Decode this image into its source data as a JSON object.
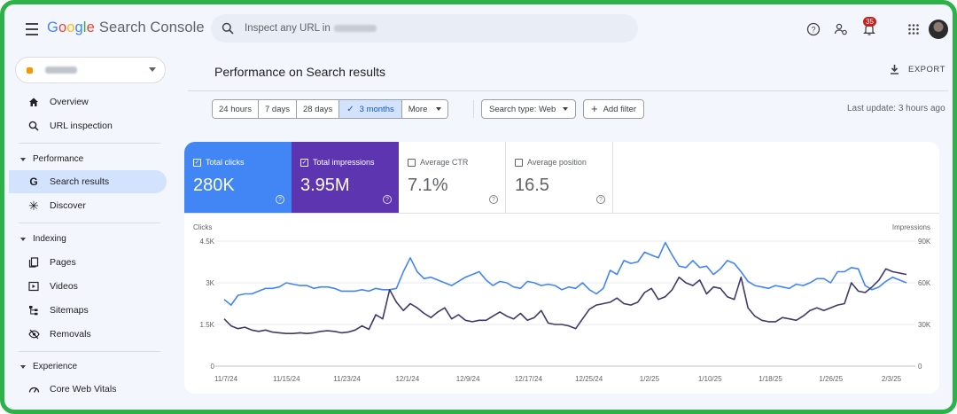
{
  "header": {
    "logo": {
      "g1": "G",
      "g2": "o",
      "g3": "o",
      "g4": "g",
      "g5": "l",
      "g6": "e",
      "product": "Search Console"
    },
    "search_placeholder": "Inspect any URL in",
    "notification_count": "35",
    "icons": [
      "menu-icon",
      "search-icon",
      "help-icon",
      "manage-users-icon",
      "bell-icon",
      "apps-icon"
    ]
  },
  "sidebar": {
    "items": [
      {
        "label": "Overview",
        "icon": "home-icon"
      },
      {
        "label": "URL inspection",
        "icon": "search-icon"
      },
      {
        "label": "Search results",
        "icon": "google-g-icon"
      },
      {
        "label": "Discover",
        "icon": "asterisk-icon"
      },
      {
        "label": "Pages",
        "icon": "pages-icon"
      },
      {
        "label": "Videos",
        "icon": "video-icon"
      },
      {
        "label": "Sitemaps",
        "icon": "sitemap-icon"
      },
      {
        "label": "Removals",
        "icon": "eye-off-icon"
      },
      {
        "label": "Core Web Vitals",
        "icon": "gauge-icon"
      }
    ],
    "sections": [
      "Performance",
      "Indexing",
      "Experience"
    ]
  },
  "main": {
    "title": "Performance on Search results",
    "export_label": "EXPORT",
    "date_ranges": [
      "24 hours",
      "7 days",
      "28 days",
      "3 months",
      "More"
    ],
    "selected_range": "3 months",
    "search_type": "Search type: Web",
    "add_filter": "Add filter",
    "last_update": "Last update: 3 hours ago"
  },
  "metrics": [
    {
      "label": "Total clicks",
      "value": "280K",
      "checked": true,
      "color": "#4285f4"
    },
    {
      "label": "Total impressions",
      "value": "3.95M",
      "checked": true,
      "color": "#5e35b1"
    },
    {
      "label": "Average CTR",
      "value": "7.1%",
      "checked": false
    },
    {
      "label": "Average position",
      "value": "16.5",
      "checked": false
    }
  ],
  "chart_data": {
    "type": "line",
    "left_axis": {
      "label": "Clicks",
      "ticks": [
        "4.5K",
        "3K",
        "1.5K",
        "0"
      ],
      "range": [
        0,
        4500
      ]
    },
    "right_axis": {
      "label": "Impressions",
      "ticks": [
        "90K",
        "60K",
        "30K",
        "0"
      ],
      "range": [
        0,
        90000
      ]
    },
    "x_ticks": [
      "11/7/24",
      "11/15/24",
      "11/23/24",
      "12/1/24",
      "12/9/24",
      "12/17/24",
      "12/25/24",
      "1/2/25",
      "1/10/25",
      "1/18/25",
      "1/26/25",
      "2/3/25"
    ],
    "series": [
      {
        "axis": "left",
        "color": "#4285f4",
        "values": [
          2400,
          2200,
          2550,
          2600,
          2600,
          2700,
          2800,
          2800,
          2850,
          3000,
          2950,
          2900,
          2900,
          2800,
          2850,
          2850,
          2800,
          2700,
          2700,
          2700,
          2750,
          2700,
          2800,
          2750,
          2750,
          2800,
          3400,
          3900,
          3400,
          3150,
          3200,
          3100,
          3000,
          2900,
          3050,
          3200,
          3300,
          3400,
          3100,
          2900,
          3050,
          3000,
          2850,
          2800,
          3050,
          3000,
          2900,
          2950,
          2900,
          2750,
          2850,
          2800,
          3000,
          2750,
          2600,
          2800,
          3450,
          3300,
          3800,
          3700,
          3750,
          4100,
          4000,
          3900,
          4450,
          4000,
          3600,
          3550,
          3800,
          3550,
          3600,
          3300,
          3500,
          3800,
          3700,
          3400,
          3050,
          2900,
          2850,
          2800,
          2900,
          2850,
          2800,
          2950,
          2900,
          3000,
          3150,
          3150,
          3000,
          3400,
          3400,
          3550,
          3500,
          2900,
          2750,
          2850,
          3050,
          3200,
          3100,
          3000
        ]
      },
      {
        "axis": "right",
        "color": "#3d3a6b",
        "values": [
          34000,
          29000,
          27000,
          28000,
          26000,
          25000,
          26000,
          24500,
          24000,
          23500,
          23500,
          24000,
          23500,
          24000,
          25000,
          25500,
          25000,
          24000,
          24500,
          26000,
          29000,
          26500,
          37000,
          34000,
          55000,
          46000,
          40000,
          45000,
          42000,
          38000,
          35000,
          39000,
          42000,
          34000,
          37000,
          33000,
          32000,
          33000,
          33000,
          36000,
          39000,
          36000,
          34000,
          38000,
          33000,
          35000,
          40000,
          31000,
          30000,
          30000,
          29000,
          27000,
          34000,
          41000,
          44000,
          45000,
          46000,
          49000,
          45000,
          44000,
          46000,
          53000,
          56000,
          48000,
          50000,
          55000,
          64000,
          60000,
          58000,
          62000,
          52000,
          57000,
          56000,
          50000,
          48000,
          64000,
          42000,
          36000,
          33000,
          32000,
          32000,
          35000,
          34000,
          33000,
          36000,
          40000,
          42000,
          40000,
          42000,
          44000,
          45000,
          60000,
          54000,
          53000,
          57000,
          62000,
          70000,
          68000,
          67000,
          66000
        ]
      }
    ],
    "grid": true
  }
}
